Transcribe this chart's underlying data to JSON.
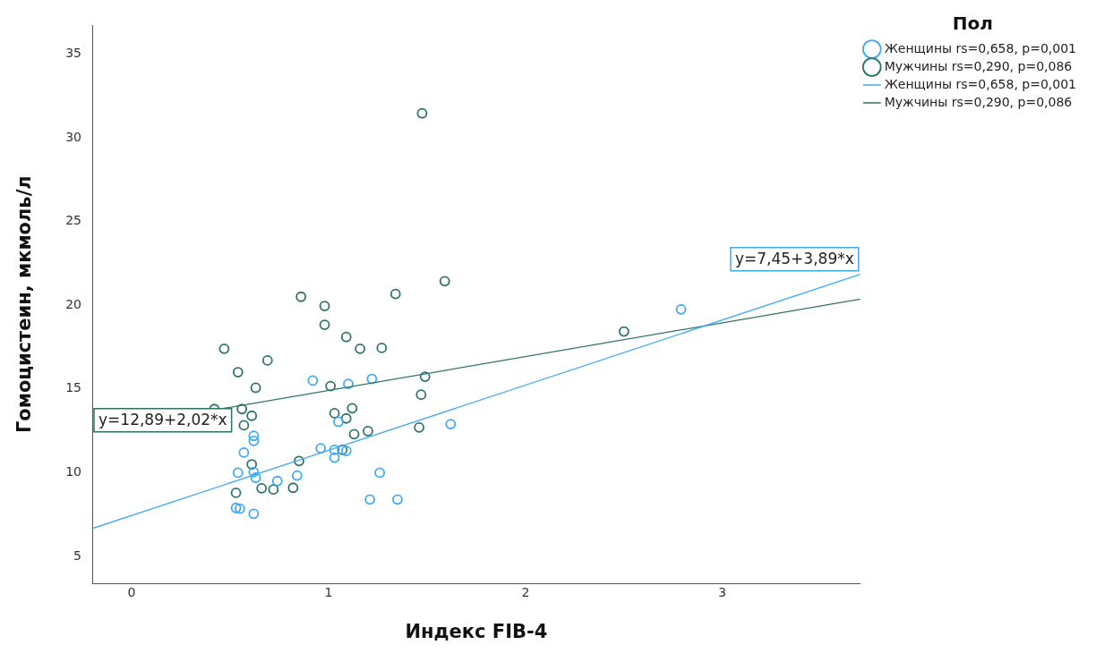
{
  "chart_data": {
    "type": "scatter",
    "xlabel": "Индекс FIB-4",
    "ylabel": "Гомоцистеин, мкмоль/л",
    "legend_title": "Пол",
    "legend": "top right",
    "grid": false,
    "xlim": [
      -0.2,
      3.7
    ],
    "ylim": [
      3.4,
      36.7
    ],
    "xticks": [
      0,
      1,
      2,
      3
    ],
    "yticks": [
      5,
      10,
      15,
      20,
      25,
      30,
      35
    ],
    "series": [
      {
        "name": "Женщины rs=0,658, p=0,001",
        "color": "#3fa9f5",
        "marker": "circle",
        "x": [
          0.92,
          1.1,
          1.22,
          1.62,
          2.79,
          0.62,
          0.62,
          0.57,
          0.54,
          0.62,
          0.63,
          0.74,
          0.84,
          0.96,
          1.03,
          1.03,
          1.09,
          1.05,
          1.26,
          1.21,
          1.35,
          0.53,
          0.55,
          0.62
        ],
        "values": [
          15.5,
          15.3,
          15.6,
          12.9,
          19.75,
          12.2,
          11.9,
          11.2,
          10.0,
          10.04,
          9.7,
          9.5,
          9.83,
          11.46,
          10.9,
          11.36,
          11.3,
          13.04,
          10.0,
          8.4,
          8.4,
          7.9,
          7.85,
          7.55
        ]
      },
      {
        "name": "Мужчины rs=0,290, p=0,086",
        "color": "#2e7367",
        "marker": "circle",
        "x": [
          1.475,
          1.59,
          1.34,
          0.86,
          0.98,
          0.98,
          1.09,
          1.16,
          1.27,
          2.5,
          0.47,
          0.69,
          0.54,
          0.63,
          1.01,
          1.49,
          1.47,
          0.42,
          0.56,
          0.61,
          0.57,
          1.03,
          1.12,
          1.09,
          1.13,
          1.2,
          1.46,
          0.85,
          1.07,
          0.61,
          0.53,
          0.66,
          0.72,
          0.82
        ],
        "values": [
          31.45,
          21.43,
          20.67,
          20.5,
          19.95,
          18.83,
          18.1,
          17.4,
          17.45,
          18.43,
          17.4,
          16.7,
          16.0,
          15.07,
          15.17,
          15.73,
          14.66,
          13.8,
          13.8,
          13.4,
          12.83,
          13.55,
          13.85,
          13.24,
          12.3,
          12.48,
          12.7,
          10.7,
          11.36,
          10.5,
          8.8,
          9.07,
          9.0,
          9.1
        ]
      },
      {
        "name": "Женщины rs=0,658, p=0,001",
        "color": "#3fa9f5",
        "type": "line",
        "marker": "none",
        "x": [
          -0.2,
          3.7
        ],
        "values": [
          6.67,
          21.84
        ]
      },
      {
        "name": "Мужчины rs=0,290, p=0,086",
        "color": "#2e7367",
        "type": "line",
        "marker": "none",
        "x": [
          -0.2,
          3.7
        ],
        "values": [
          12.49,
          20.36
        ]
      }
    ],
    "annotations": [
      "y=7,45+3,89*x",
      "y=12,89+2,02*x"
    ]
  }
}
